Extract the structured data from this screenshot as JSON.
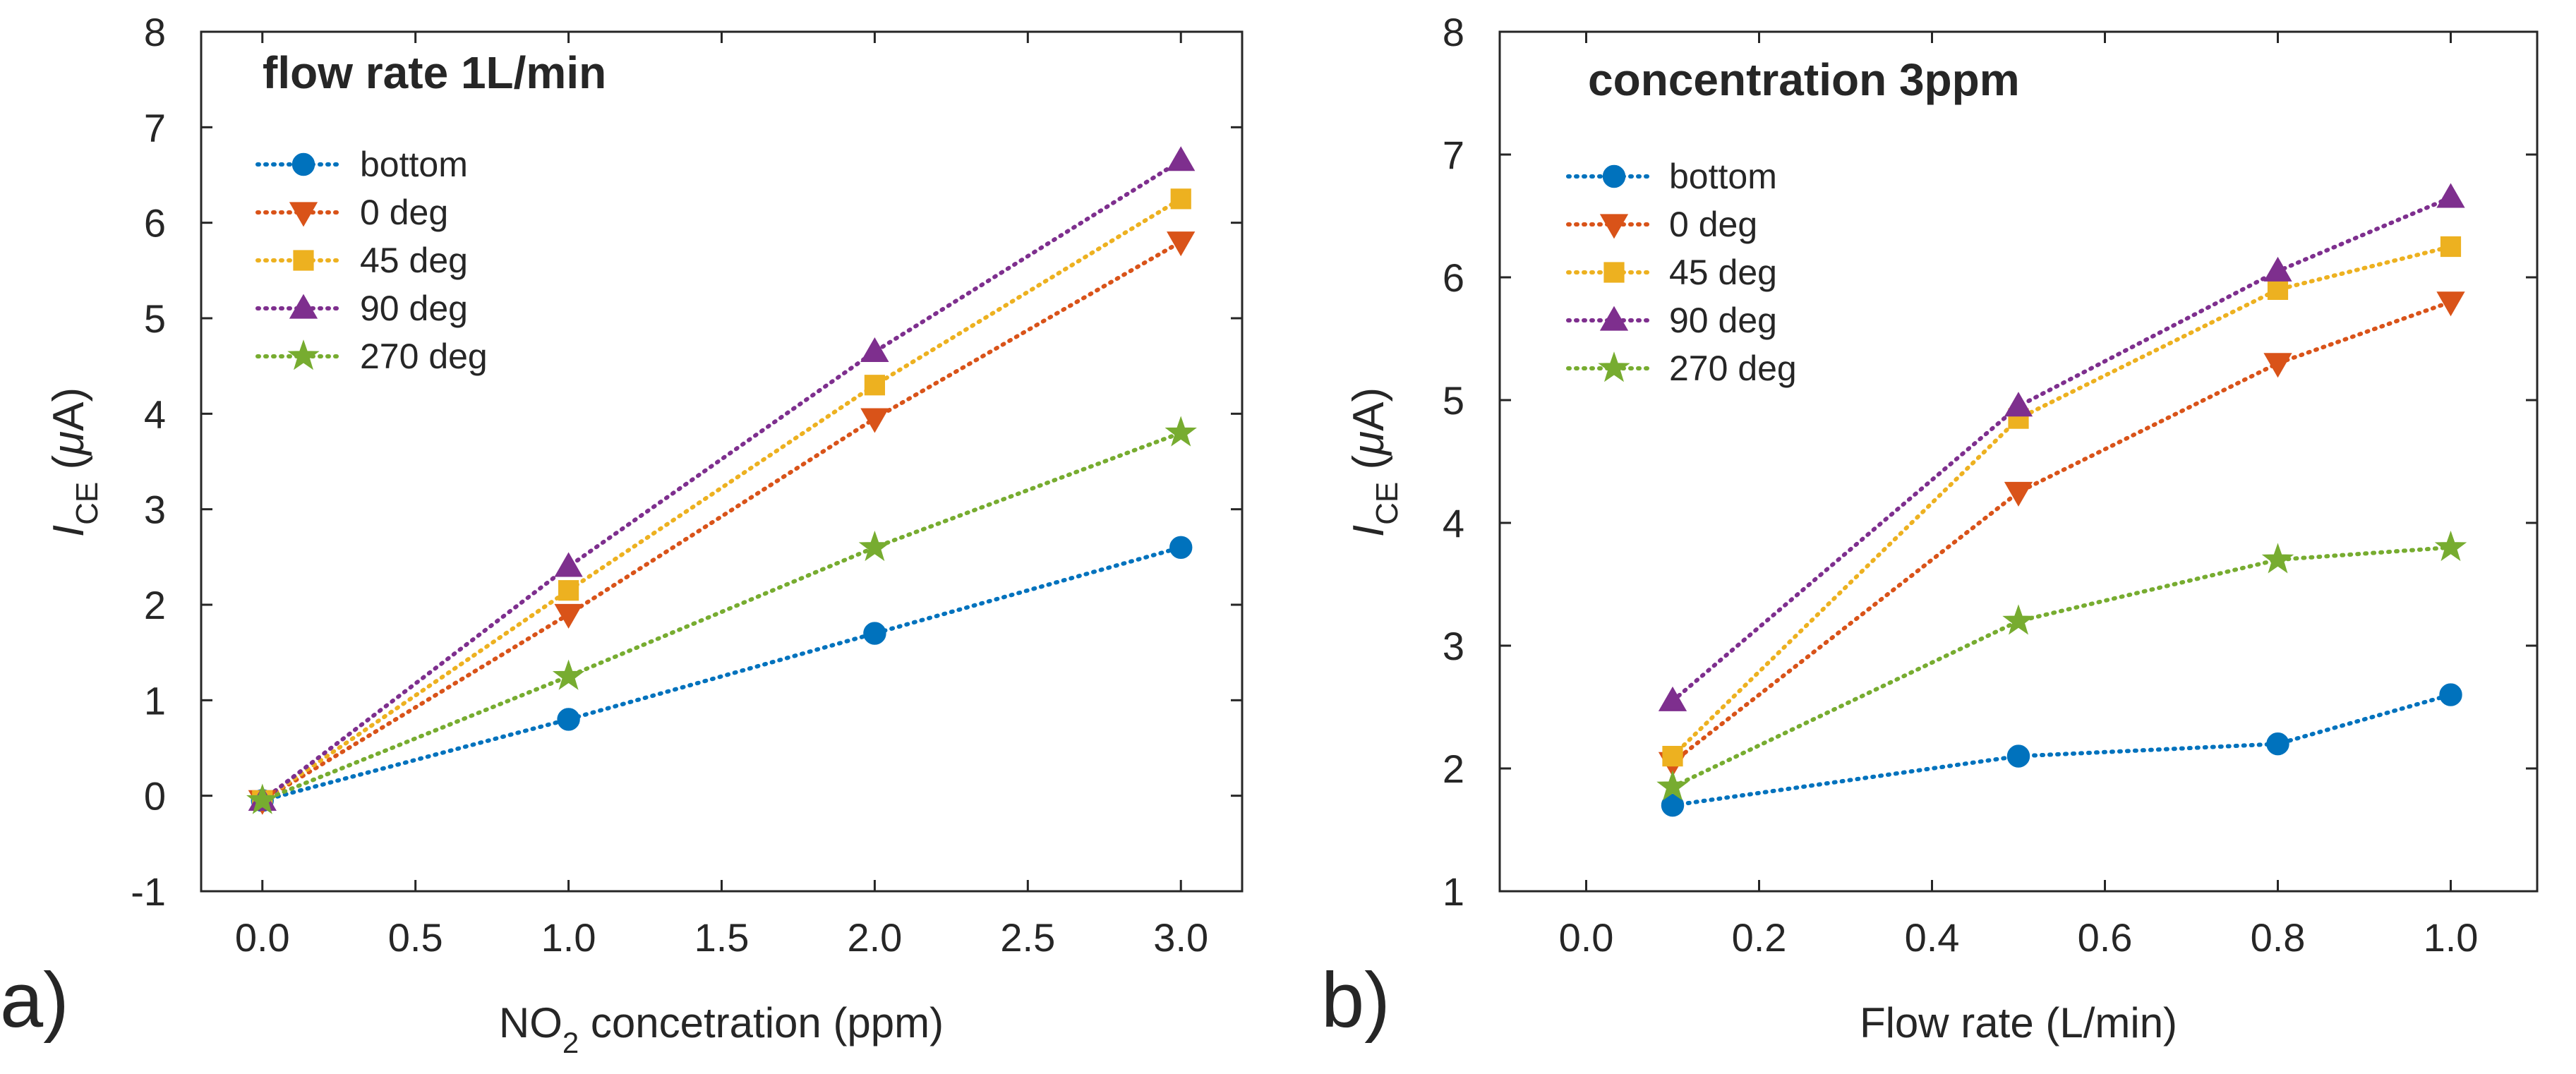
{
  "chart_data": [
    {
      "panel_label": "a)",
      "type": "line",
      "title": "flow rate 1L/min",
      "xlabel_parts": [
        "NO",
        "2",
        " concetration (ppm)"
      ],
      "ylabel_parts": [
        "I",
        "CE",
        " (",
        "μ",
        "A)"
      ],
      "xlim": [
        -0.2,
        3.2
      ],
      "ylim": [
        -1,
        8
      ],
      "xticks": [
        0,
        0.5,
        1,
        1.5,
        2,
        2.5,
        3
      ],
      "xtick_labels": [
        "0.0",
        "0.5",
        "1.0",
        "1.5",
        "2.0",
        "2.5",
        "3.0"
      ],
      "yticks": [
        -1,
        0,
        1,
        2,
        3,
        4,
        5,
        6,
        7,
        8
      ],
      "ytick_labels": [
        "-1",
        "0",
        "1",
        "2",
        "3",
        "4",
        "5",
        "6",
        "7",
        "8"
      ],
      "grid": false,
      "legend_position": "top-left",
      "x": [
        0,
        1,
        2,
        3
      ],
      "series": [
        {
          "name": "bottom",
          "values": [
            -0.05,
            0.8,
            1.7,
            2.6
          ]
        },
        {
          "name": "0 deg",
          "values": [
            -0.05,
            1.9,
            3.95,
            5.8
          ]
        },
        {
          "name": "45 deg",
          "values": [
            -0.05,
            2.15,
            4.3,
            6.25
          ]
        },
        {
          "name": "90 deg",
          "values": [
            -0.05,
            2.4,
            4.65,
            6.65
          ]
        },
        {
          "name": "270 deg",
          "values": [
            -0.05,
            1.25,
            2.6,
            3.8
          ]
        }
      ]
    },
    {
      "panel_label": "b)",
      "type": "line",
      "title": "concentration 3ppm",
      "xlabel_parts": [
        "Flow rate (L/min)"
      ],
      "ylabel_parts": [
        "I",
        "CE",
        " (",
        "μ",
        "A)"
      ],
      "xlim": [
        -0.1,
        1.1
      ],
      "ylim": [
        1,
        8
      ],
      "xticks": [
        0,
        0.2,
        0.4,
        0.6,
        0.8,
        1.0
      ],
      "xtick_labels": [
        "0.0",
        "0.2",
        "0.4",
        "0.6",
        "0.8",
        "1.0"
      ],
      "yticks": [
        1,
        2,
        3,
        4,
        5,
        6,
        7,
        8
      ],
      "ytick_labels": [
        "1",
        "2",
        "3",
        "4",
        "5",
        "6",
        "7",
        "8"
      ],
      "grid": false,
      "legend_position": "top-left",
      "x": [
        0.1,
        0.5,
        0.8,
        1.0
      ],
      "series": [
        {
          "name": "bottom",
          "values": [
            1.7,
            2.1,
            2.2,
            2.6
          ]
        },
        {
          "name": "0 deg",
          "values": [
            2.05,
            4.25,
            5.3,
            5.8
          ]
        },
        {
          "name": "45 deg",
          "values": [
            2.1,
            4.85,
            5.9,
            6.25
          ]
        },
        {
          "name": "90 deg",
          "values": [
            2.55,
            4.95,
            6.05,
            6.65
          ]
        },
        {
          "name": "270 deg",
          "values": [
            1.85,
            3.2,
            3.7,
            3.8
          ]
        }
      ]
    }
  ],
  "series_styles": [
    {
      "name": "bottom",
      "color": "#0072BD",
      "marker": "circle"
    },
    {
      "name": "0 deg",
      "color": "#D95319",
      "marker": "triangle-down"
    },
    {
      "name": "45 deg",
      "color": "#EDB120",
      "marker": "square"
    },
    {
      "name": "90 deg",
      "color": "#7E2F8E",
      "marker": "triangle-up"
    },
    {
      "name": "270 deg",
      "color": "#77AC30",
      "marker": "pentagram"
    }
  ]
}
